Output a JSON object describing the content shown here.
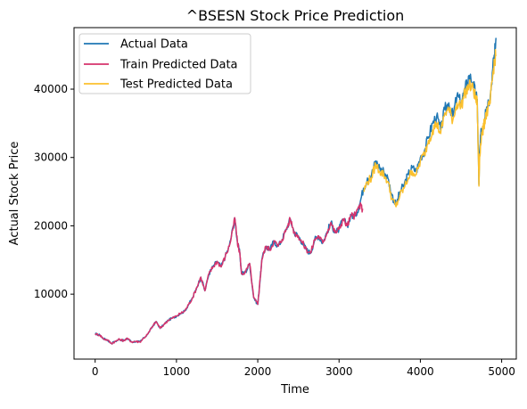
{
  "chart_data": {
    "type": "line",
    "title": "^BSESN Stock Price Prediction",
    "xlabel": "Time",
    "ylabel": "Actual Stock Price",
    "xlim": [
      -260,
      5180
    ],
    "ylim": [
      500,
      49000
    ],
    "xticks": [
      0,
      1000,
      2000,
      3000,
      4000,
      5000
    ],
    "yticks": [
      10000,
      20000,
      30000,
      40000
    ],
    "grid": false,
    "legend_position": "top-left",
    "colors": {
      "actual": "#1f77b4",
      "train": "#d6336c",
      "test": "#fbc02d"
    },
    "series": [
      {
        "name": "Actual Data",
        "key": "actual",
        "x": [
          0,
          60,
          100,
          150,
          200,
          250,
          300,
          350,
          400,
          450,
          500,
          550,
          600,
          650,
          700,
          750,
          800,
          850,
          900,
          950,
          1000,
          1050,
          1100,
          1150,
          1200,
          1250,
          1300,
          1350,
          1400,
          1450,
          1500,
          1550,
          1600,
          1650,
          1700,
          1720,
          1750,
          1780,
          1800,
          1850,
          1900,
          1950,
          2000,
          2020,
          2050,
          2100,
          2150,
          2200,
          2250,
          2300,
          2350,
          2400,
          2450,
          2500,
          2550,
          2600,
          2650,
          2700,
          2750,
          2800,
          2850,
          2900,
          2950,
          3000,
          3050,
          3100,
          3150,
          3200,
          3250,
          3300,
          3350,
          3400,
          3450,
          3500,
          3550,
          3600,
          3650,
          3700,
          3750,
          3800,
          3850,
          3900,
          3950,
          4000,
          4050,
          4100,
          4150,
          4200,
          4250,
          4300,
          4350,
          4400,
          4450,
          4500,
          4550,
          4600,
          4650,
          4680,
          4700,
          4720,
          4730,
          4750,
          4780,
          4800,
          4830,
          4860,
          4890,
          4910,
          4930
        ],
        "y": [
          4200,
          4000,
          3500,
          3300,
          2800,
          3100,
          3400,
          3200,
          3500,
          3000,
          3100,
          3000,
          3600,
          4200,
          5200,
          6000,
          5000,
          5600,
          6200,
          6500,
          6800,
          7200,
          7500,
          8500,
          9500,
          11000,
          12500,
          10500,
          13000,
          14000,
          14800,
          14000,
          15500,
          17000,
          20000,
          21000,
          17500,
          16000,
          13000,
          13200,
          14500,
          9500,
          8500,
          11000,
          15000,
          17000,
          16500,
          17800,
          17000,
          18000,
          19500,
          21000,
          19000,
          18500,
          17500,
          16500,
          16000,
          18000,
          18500,
          17500,
          19000,
          20500,
          19000,
          19500,
          21000,
          20000,
          21500,
          21500,
          23000,
          25500,
          27000,
          27500,
          29500,
          28500,
          28000,
          27000,
          24500,
          23000,
          25000,
          26000,
          27500,
          28500,
          28000,
          30000,
          31000,
          33000,
          35000,
          36000,
          34000,
          37000,
          38000,
          36000,
          39000,
          38000,
          40000,
          42000,
          41000,
          39000,
          38500,
          26000,
          31000,
          34000,
          35000,
          37000,
          38000,
          39000,
          43000,
          45000,
          47500
        ]
      },
      {
        "name": "Train Predicted Data",
        "key": "train",
        "x": [
          0,
          60,
          100,
          150,
          200,
          250,
          300,
          350,
          400,
          450,
          500,
          550,
          600,
          650,
          700,
          750,
          800,
          850,
          900,
          950,
          1000,
          1050,
          1100,
          1150,
          1200,
          1250,
          1300,
          1350,
          1400,
          1450,
          1500,
          1550,
          1600,
          1650,
          1700,
          1720,
          1750,
          1780,
          1800,
          1850,
          1900,
          1950,
          2000,
          2020,
          2050,
          2100,
          2150,
          2200,
          2250,
          2300,
          2350,
          2400,
          2450,
          2500,
          2550,
          2600,
          2650,
          2700,
          2750,
          2800,
          2850,
          2900,
          2950,
          3000,
          3050,
          3100,
          3150,
          3200,
          3250,
          3290
        ],
        "y": [
          4200,
          4000,
          3500,
          3300,
          2800,
          3100,
          3400,
          3200,
          3500,
          3000,
          3100,
          3000,
          3600,
          4200,
          5200,
          6000,
          5000,
          5600,
          6200,
          6500,
          6800,
          7200,
          7500,
          8500,
          9500,
          11000,
          12500,
          10500,
          13000,
          14000,
          14800,
          14000,
          15500,
          17000,
          20000,
          21000,
          17500,
          16000,
          13000,
          13200,
          14500,
          9500,
          8500,
          11000,
          15000,
          17000,
          16500,
          17800,
          17000,
          18000,
          19500,
          21000,
          19000,
          18500,
          17500,
          16500,
          16000,
          18000,
          18500,
          17500,
          19000,
          20500,
          19000,
          19500,
          21000,
          20000,
          21500,
          21500,
          23000,
          22500
        ]
      },
      {
        "name": "Test Predicted Data",
        "key": "test",
        "x": [
          3300,
          3350,
          3400,
          3450,
          3500,
          3550,
          3600,
          3650,
          3700,
          3750,
          3800,
          3850,
          3900,
          3950,
          4000,
          4050,
          4100,
          4150,
          4200,
          4250,
          4300,
          4350,
          4400,
          4450,
          4500,
          4550,
          4600,
          4650,
          4680,
          4700,
          4720,
          4730,
          4750,
          4780,
          4800,
          4830,
          4860,
          4890,
          4910,
          4930
        ],
        "y": [
          25000,
          26500,
          27000,
          29000,
          28000,
          27500,
          26500,
          24000,
          22800,
          24500,
          25500,
          27000,
          28000,
          27500,
          29500,
          30500,
          32500,
          34000,
          35000,
          33500,
          36500,
          37000,
          35500,
          38000,
          37500,
          39500,
          40500,
          40000,
          38500,
          38000,
          25800,
          30500,
          33000,
          34500,
          36000,
          37000,
          38000,
          42000,
          44000,
          45000
        ]
      }
    ]
  }
}
